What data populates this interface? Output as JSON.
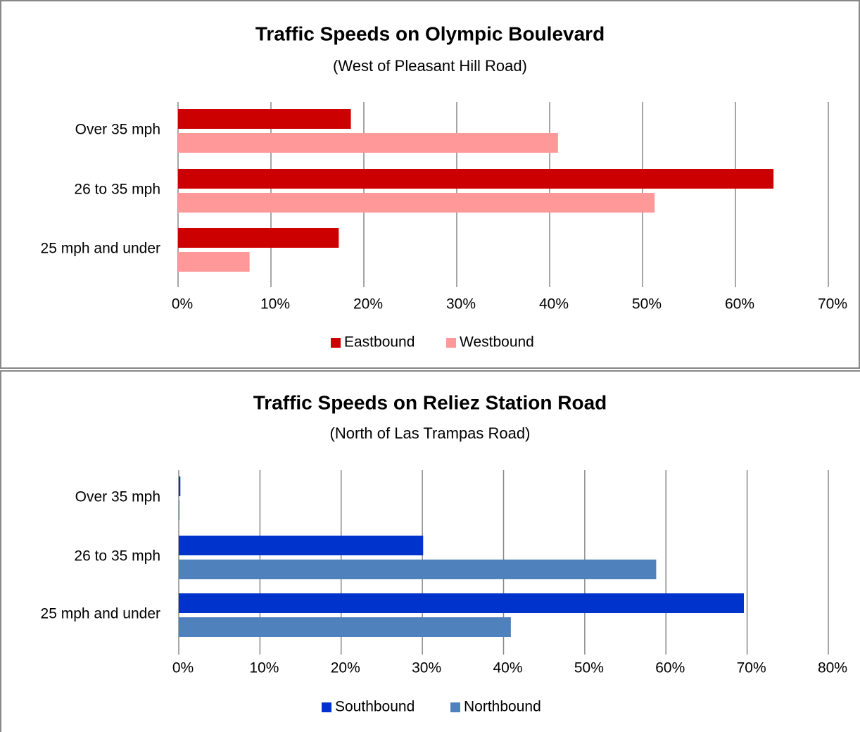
{
  "chart_data": [
    {
      "type": "bar",
      "orientation": "horizontal",
      "title": "Traffic Speeds on Olympic Boulevard",
      "subtitle": "(West of Pleasant Hill Road)",
      "categories": [
        "Over 35 mph",
        "26 to 35 mph",
        "25 mph and under"
      ],
      "series": [
        {
          "name": "Eastbound",
          "color": "#cc0000",
          "values": [
            18.6,
            64.1,
            17.3
          ]
        },
        {
          "name": "Westbound",
          "color": "#ff9999",
          "values": [
            40.9,
            51.3,
            7.7
          ]
        }
      ],
      "xlim": [
        0,
        70
      ],
      "xticks": [
        {
          "value": 0,
          "label": "0%"
        },
        {
          "value": 10,
          "label": "10%"
        },
        {
          "value": 20,
          "label": "20%"
        },
        {
          "value": 30,
          "label": "30%"
        },
        {
          "value": 40,
          "label": "40%"
        },
        {
          "value": 50,
          "label": "50%"
        },
        {
          "value": 60,
          "label": "60%"
        },
        {
          "value": 70,
          "label": "70%"
        }
      ],
      "grid": true,
      "legend": "bottom"
    },
    {
      "type": "bar",
      "orientation": "horizontal",
      "title": "Traffic Speeds on Reliez Station Road",
      "subtitle": "(North of Las Trampas Road)",
      "categories": [
        "Over 35 mph",
        "26 to 35 mph",
        "25 mph and under"
      ],
      "series": [
        {
          "name": "Southbound",
          "color": "#0033cc",
          "values": [
            0.2,
            30.1,
            69.6
          ]
        },
        {
          "name": "Northbound",
          "color": "#4f81bd",
          "values": [
            0.1,
            58.8,
            40.9
          ]
        }
      ],
      "xlim": [
        0,
        80
      ],
      "xticks": [
        {
          "value": 0,
          "label": "0%"
        },
        {
          "value": 10,
          "label": "10%"
        },
        {
          "value": 20,
          "label": "20%"
        },
        {
          "value": 30,
          "label": "30%"
        },
        {
          "value": 40,
          "label": "40%"
        },
        {
          "value": 50,
          "label": "50%"
        },
        {
          "value": 60,
          "label": "60%"
        },
        {
          "value": 70,
          "label": "70%"
        },
        {
          "value": 80,
          "label": "80%"
        }
      ],
      "grid": true,
      "legend": "bottom"
    }
  ]
}
